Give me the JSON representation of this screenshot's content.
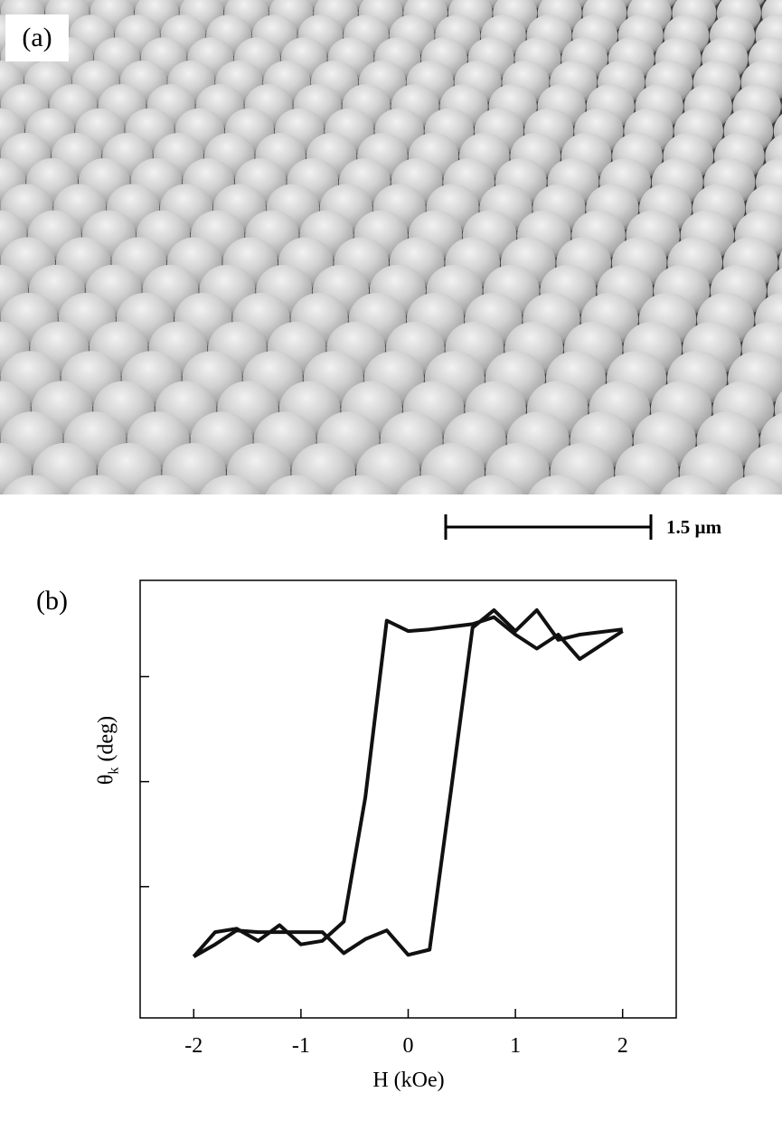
{
  "panel_a": {
    "label": "(a)",
    "scale_bar_label": "1.5 µm"
  },
  "panel_b": {
    "label": "(b)"
  },
  "chart_data": {
    "type": "line",
    "xlabel": "H (kOe)",
    "ylabel": "θk (deg)",
    "xlim": [
      -2.5,
      2.5
    ],
    "ylim": [
      -1.35,
      1.15
    ],
    "x_ticks": [
      -2,
      -1,
      0,
      1,
      2
    ],
    "x_tick_labels": [
      "-2",
      "-1",
      "0",
      "1",
      "2"
    ],
    "y_ticks": [
      -0.6,
      0,
      0.6
    ],
    "y_tick_labels": [],
    "grid": false,
    "series": [
      {
        "x": [
          -2.0,
          -1.8,
          -1.6,
          -1.4,
          -1.2,
          -1.0,
          -0.8,
          -0.6,
          -0.4,
          -0.2,
          0.0,
          0.2,
          0.6,
          0.8,
          1.0,
          1.2,
          1.4,
          1.6,
          1.8,
          2.0
        ],
        "y": [
          -1.0,
          -0.86,
          -0.84,
          -0.91,
          -0.82,
          -0.93,
          -0.91,
          -0.8,
          -0.09,
          0.92,
          0.86,
          0.87,
          0.9,
          0.94,
          0.84,
          0.76,
          0.84,
          0.7,
          0.78,
          0.86
        ]
      },
      {
        "x": [
          -2.0,
          -1.8,
          -1.6,
          -1.4,
          -1.2,
          -1.0,
          -0.8,
          -0.6,
          -0.4,
          -0.2,
          0.0,
          0.2,
          0.4,
          0.6,
          0.8,
          1.0,
          1.2,
          1.4,
          1.6,
          2.0
        ],
        "y": [
          -1.0,
          -0.93,
          -0.85,
          -0.86,
          -0.86,
          -0.86,
          -0.86,
          -0.98,
          -0.9,
          -0.85,
          -0.99,
          -0.96,
          -0.05,
          0.88,
          0.98,
          0.86,
          0.98,
          0.81,
          0.84,
          0.87
        ]
      }
    ]
  }
}
